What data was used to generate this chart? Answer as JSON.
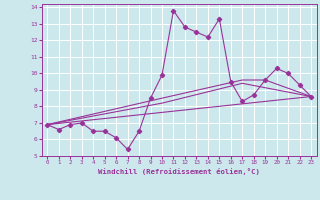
{
  "xlabel": "Windchill (Refroidissement éolien,°C)",
  "bg_color": "#cce8ec",
  "grid_color": "#ffffff",
  "line_color": "#993399",
  "xlim": [
    -0.5,
    23.5
  ],
  "ylim": [
    5,
    14.2
  ],
  "xticks": [
    0,
    1,
    2,
    3,
    4,
    5,
    6,
    7,
    8,
    9,
    10,
    11,
    12,
    13,
    14,
    15,
    16,
    17,
    18,
    19,
    20,
    21,
    22,
    23
  ],
  "yticks": [
    5,
    6,
    7,
    8,
    9,
    10,
    11,
    12,
    13,
    14
  ],
  "line1_x": [
    0,
    1,
    2,
    3,
    4,
    5,
    6,
    7,
    8,
    9,
    10,
    11,
    12,
    13,
    14,
    15,
    16,
    17,
    18,
    19,
    20,
    21,
    22,
    23
  ],
  "line1_y": [
    6.9,
    6.6,
    6.9,
    7.0,
    6.5,
    6.5,
    6.1,
    5.4,
    6.5,
    8.5,
    9.9,
    13.8,
    12.8,
    12.5,
    12.2,
    13.3,
    9.5,
    8.3,
    8.7,
    9.6,
    10.3,
    10.0,
    9.3,
    8.6
  ],
  "line2_x": [
    0,
    23
  ],
  "line2_y": [
    6.9,
    8.6
  ],
  "line3_x": [
    0,
    10,
    17,
    23
  ],
  "line3_y": [
    6.9,
    8.2,
    9.4,
    8.6
  ],
  "line4_x": [
    0,
    10,
    17,
    19,
    23
  ],
  "line4_y": [
    6.9,
    8.5,
    9.6,
    9.6,
    8.6
  ]
}
